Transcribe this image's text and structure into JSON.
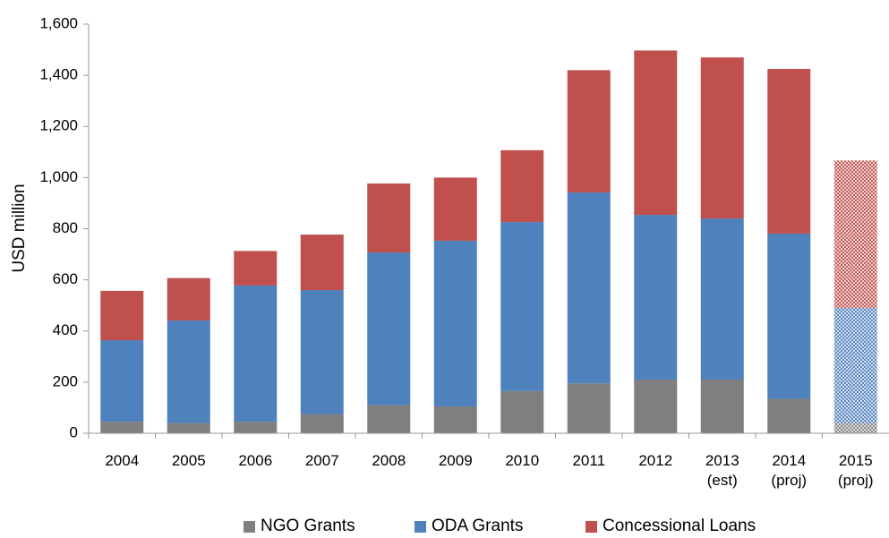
{
  "chart_data": {
    "type": "stacked_bar",
    "y_label": "USD million",
    "categories": [
      "2004",
      "2005",
      "2006",
      "2007",
      "2008",
      "2009",
      "2010",
      "2011",
      "2012",
      "2013\n(est)",
      "2014\n(proj)",
      "2015\n(proj)"
    ],
    "series": [
      {
        "name": "NGO Grants",
        "color": "#7f7f7f",
        "values": [
          45,
          40,
          45,
          75,
          110,
          105,
          165,
          195,
          210,
          210,
          135,
          40
        ]
      },
      {
        "name": "ODA Grants",
        "color": "#4f81bd",
        "values": [
          319,
          401,
          533,
          485,
          597,
          648,
          661,
          747,
          644,
          630,
          646,
          450
        ]
      },
      {
        "name": "Concessional Loans",
        "color": "#c0504d",
        "values": [
          193,
          166,
          135,
          217,
          270,
          247,
          281,
          478,
          643,
          630,
          644,
          577
        ]
      }
    ],
    "hatched": [
      false,
      false,
      false,
      false,
      false,
      false,
      false,
      false,
      false,
      false,
      false,
      true
    ],
    "ylim": [
      0,
      1600
    ],
    "yticks": [
      0,
      {
        "value": 200,
        "label": "200"
      },
      {
        "value": 400,
        "label": "400"
      },
      {
        "value": 600,
        "label": "600"
      },
      {
        "value": 800,
        "label": "800"
      },
      {
        "value": 1000,
        "label": "1,000"
      },
      {
        "value": 1200,
        "label": "1,200"
      },
      {
        "value": 1400,
        "label": "1,400"
      },
      {
        "value": 1600,
        "label": "1,600"
      }
    ],
    "grid": false,
    "legend": "bottom"
  }
}
